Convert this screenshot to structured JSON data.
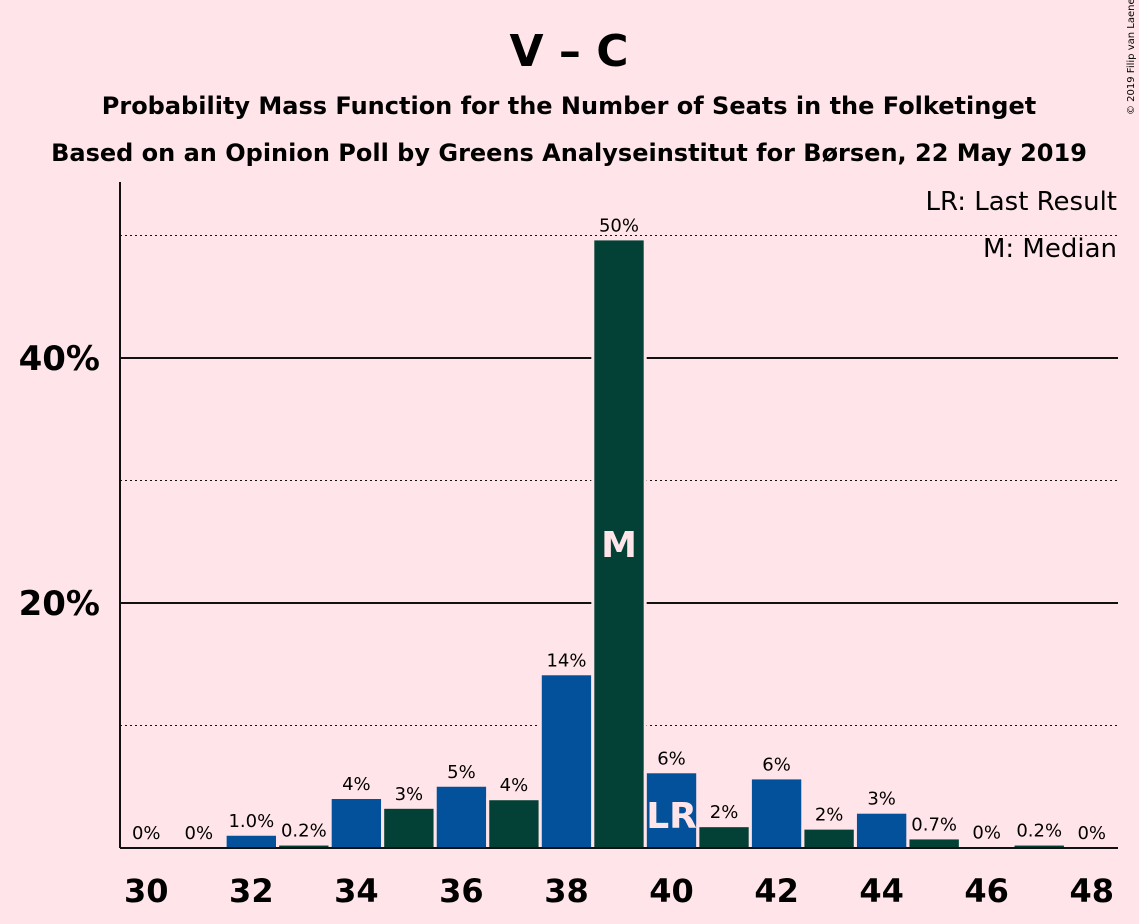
{
  "title": "V – C",
  "subtitle1": "Probability Mass Function for the Number of Seats in the Folketinget",
  "subtitle2": "Based on an Opinion Poll by Greens Analyseinstitut for Børsen, 22 May 2019",
  "copyright": "© 2019 Filip van Laenen",
  "legend": {
    "last_result": "LR: Last Result",
    "median": "M: Median"
  },
  "colors": {
    "background": "#FFE5E9",
    "blue": "#03519A",
    "green": "#034035"
  },
  "chart_data": {
    "type": "bar",
    "x": [
      30,
      31,
      32,
      33,
      34,
      35,
      36,
      37,
      38,
      39,
      40,
      41,
      42,
      43,
      44,
      45,
      46,
      47,
      48
    ],
    "values": [
      0,
      0,
      1.0,
      0.2,
      4,
      3.2,
      5,
      3.9,
      14.1,
      49.6,
      6.1,
      1.7,
      5.6,
      1.5,
      2.8,
      0.7,
      0.05,
      0.2,
      0
    ],
    "labels": [
      "0%",
      "0%",
      "1.0%",
      "0.2%",
      "4%",
      "3%",
      "5%",
      "4%",
      "14%",
      "50%",
      "6%",
      "2%",
      "6%",
      "2%",
      "3%",
      "0.7%",
      "0%",
      "0.2%",
      "0%"
    ],
    "bar_colors": [
      "blue",
      "green",
      "blue",
      "green",
      "blue",
      "green",
      "blue",
      "green",
      "blue",
      "green",
      "blue",
      "green",
      "blue",
      "green",
      "blue",
      "green",
      "blue",
      "green",
      "blue"
    ],
    "x_tick_labels": [
      "30",
      "32",
      "34",
      "36",
      "38",
      "40",
      "42",
      "44",
      "46",
      "48"
    ],
    "x_tick_values": [
      30,
      32,
      34,
      36,
      38,
      40,
      42,
      44,
      46,
      48
    ],
    "y_tick_labels": [
      "20%",
      "40%"
    ],
    "y_tick_values": [
      20,
      40
    ],
    "y_major_gridlines": [
      20,
      40
    ],
    "y_minor_gridlines": [
      10,
      30,
      50
    ],
    "ylim": [
      0,
      54
    ],
    "xlim": [
      29.5,
      48.5
    ],
    "median_seat": 39,
    "median_marker": "M",
    "last_result_seat": 40,
    "last_result_marker": "LR",
    "legend_position": "top-right"
  }
}
